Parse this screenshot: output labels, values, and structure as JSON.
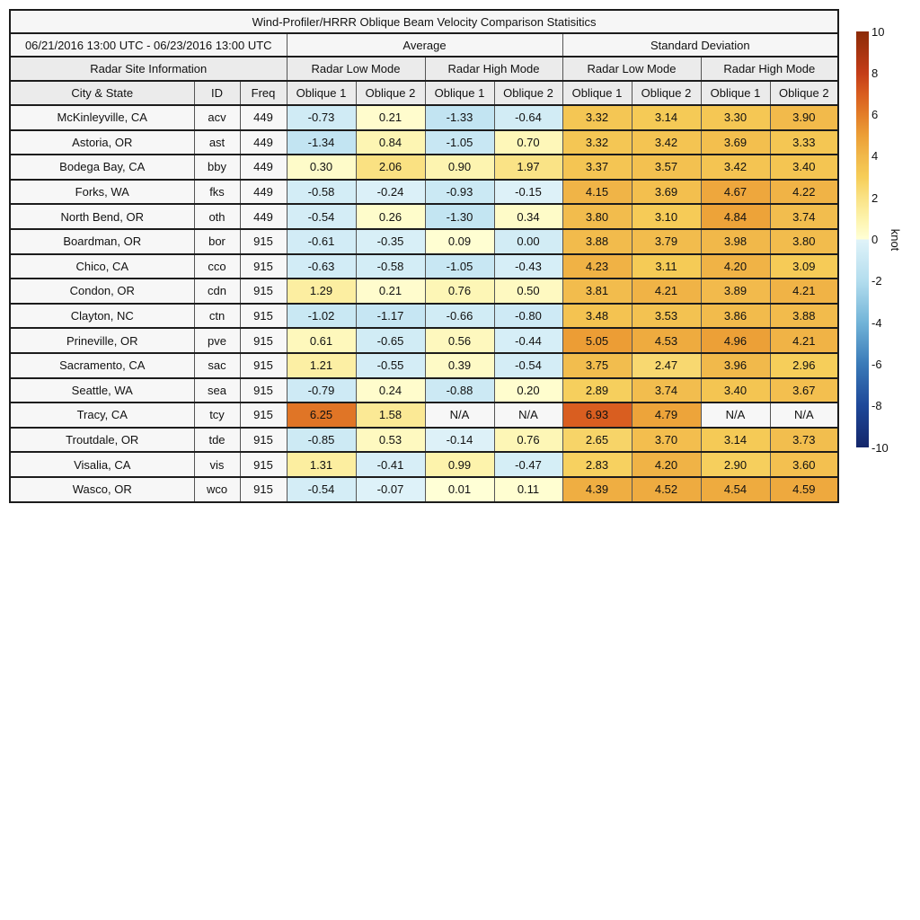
{
  "title": "Wind-Profiler/HRRR Oblique Beam Velocity Comparison Statisitics",
  "header": {
    "period": "06/21/2016 13:00 UTC - 06/23/2016 13:00 UTC",
    "avg_group": "Average",
    "std_group": "Standard Deviation",
    "site_info": "Radar Site Information",
    "low_mode": "Radar Low Mode",
    "high_mode": "Radar High Mode",
    "col_city": "City & State",
    "col_id": "ID",
    "col_freq": "Freq",
    "col_oblique1": "Oblique 1",
    "col_oblique2": "Oblique 2"
  },
  "na_label": "N/A",
  "chart_data": {
    "type": "table",
    "title": "Wind-Profiler/HRRR Oblique Beam Velocity Comparison Statisitics",
    "value_columns": [
      "Avg Low Oblique 1",
      "Avg Low Oblique 2",
      "Avg High Oblique 1",
      "Avg High Oblique 2",
      "Std Low Oblique 1",
      "Std Low Oblique 2",
      "Std High Oblique 1",
      "Std High Oblique 2"
    ],
    "rows": [
      {
        "city": "McKinleyville, CA",
        "id": "acv",
        "freq": "449",
        "values": [
          -0.73,
          0.21,
          -1.33,
          -0.64,
          3.32,
          3.14,
          3.3,
          3.9
        ]
      },
      {
        "city": "Astoria, OR",
        "id": "ast",
        "freq": "449",
        "values": [
          -1.34,
          0.84,
          -1.05,
          0.7,
          3.32,
          3.42,
          3.69,
          3.33
        ]
      },
      {
        "city": "Bodega Bay, CA",
        "id": "bby",
        "freq": "449",
        "values": [
          0.3,
          2.06,
          0.9,
          1.97,
          3.37,
          3.57,
          3.42,
          3.4
        ]
      },
      {
        "city": "Forks, WA",
        "id": "fks",
        "freq": "449",
        "values": [
          -0.58,
          -0.24,
          -0.93,
          -0.15,
          4.15,
          3.69,
          4.67,
          4.22
        ]
      },
      {
        "city": "North Bend, OR",
        "id": "oth",
        "freq": "449",
        "values": [
          -0.54,
          0.26,
          -1.3,
          0.34,
          3.8,
          3.1,
          4.84,
          3.74
        ]
      },
      {
        "city": "Boardman, OR",
        "id": "bor",
        "freq": "915",
        "values": [
          -0.61,
          -0.35,
          0.09,
          0.0,
          3.88,
          3.79,
          3.98,
          3.8
        ]
      },
      {
        "city": "Chico, CA",
        "id": "cco",
        "freq": "915",
        "values": [
          -0.63,
          -0.58,
          -1.05,
          -0.43,
          4.23,
          3.11,
          4.2,
          3.09
        ]
      },
      {
        "city": "Condon, OR",
        "id": "cdn",
        "freq": "915",
        "values": [
          1.29,
          0.21,
          0.76,
          0.5,
          3.81,
          4.21,
          3.89,
          4.21
        ]
      },
      {
        "city": "Clayton, NC",
        "id": "ctn",
        "freq": "915",
        "values": [
          -1.02,
          -1.17,
          -0.66,
          -0.8,
          3.48,
          3.53,
          3.86,
          3.88
        ]
      },
      {
        "city": "Prineville, OR",
        "id": "pve",
        "freq": "915",
        "values": [
          0.61,
          -0.65,
          0.56,
          -0.44,
          5.05,
          4.53,
          4.96,
          4.21
        ]
      },
      {
        "city": "Sacramento, CA",
        "id": "sac",
        "freq": "915",
        "values": [
          1.21,
          -0.55,
          0.39,
          -0.54,
          3.75,
          2.47,
          3.96,
          2.96
        ]
      },
      {
        "city": "Seattle, WA",
        "id": "sea",
        "freq": "915",
        "values": [
          -0.79,
          0.24,
          -0.88,
          0.2,
          2.89,
          3.74,
          3.4,
          3.67
        ]
      },
      {
        "city": "Tracy, CA",
        "id": "tcy",
        "freq": "915",
        "values": [
          6.25,
          1.58,
          null,
          null,
          6.93,
          4.79,
          null,
          null
        ]
      },
      {
        "city": "Troutdale, OR",
        "id": "tde",
        "freq": "915",
        "values": [
          -0.85,
          0.53,
          -0.14,
          0.76,
          2.65,
          3.7,
          3.14,
          3.73
        ]
      },
      {
        "city": "Visalia, CA",
        "id": "vis",
        "freq": "915",
        "values": [
          1.31,
          -0.41,
          0.99,
          -0.47,
          2.83,
          4.2,
          2.9,
          3.6
        ]
      },
      {
        "city": "Wasco, OR",
        "id": "wco",
        "freq": "915",
        "values": [
          -0.54,
          -0.07,
          0.01,
          0.11,
          4.39,
          4.52,
          4.54,
          4.59
        ]
      }
    ]
  },
  "colorbar": {
    "label": "knot",
    "min": -10,
    "max": 10,
    "ticks": [
      10,
      8,
      6,
      4,
      2,
      0,
      -2,
      -4,
      -6,
      -8,
      -10
    ]
  },
  "color_scale": {
    "na_bg": "#f7f7f7",
    "zero_bg": "#d2ecf5",
    "stops": [
      [
        -10,
        "#14266a"
      ],
      [
        -8,
        "#1e4899"
      ],
      [
        -6,
        "#3a7ab8"
      ],
      [
        -4,
        "#72b4d8"
      ],
      [
        -2,
        "#b3ddee"
      ],
      [
        -0.001,
        "#e0f3f9"
      ],
      [
        0.001,
        "#ffffd6"
      ],
      [
        1,
        "#fdf3ac"
      ],
      [
        2,
        "#fae285"
      ],
      [
        3,
        "#f6cd58"
      ],
      [
        4,
        "#f1b84a"
      ],
      [
        5,
        "#ec9f36"
      ],
      [
        6,
        "#e37d28"
      ],
      [
        7,
        "#d85c1f"
      ],
      [
        8,
        "#c43d18"
      ],
      [
        10,
        "#8c2b07"
      ]
    ]
  }
}
